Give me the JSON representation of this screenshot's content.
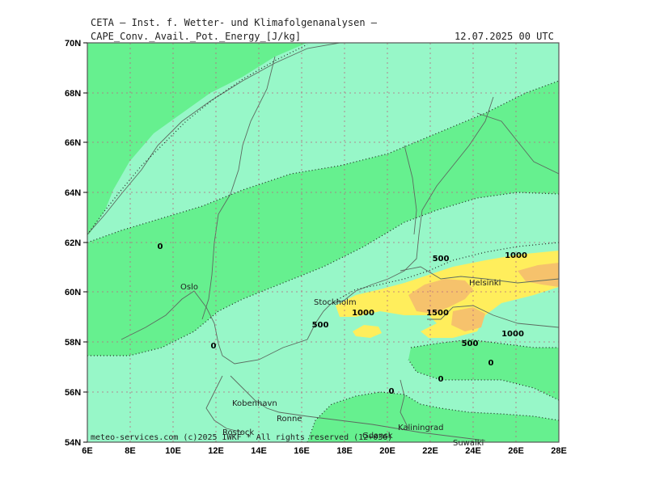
{
  "header": {
    "line1": "CETA – Inst. f. Wetter- und Klimafolgenanalysen –",
    "line2_left": "CAPE_Conv._Avail._Pot._Energy_[J/kg]",
    "line2_right": "12.07.2025 00 UTC"
  },
  "map": {
    "lat_labels": [
      "70N",
      "68N",
      "66N",
      "64N",
      "62N",
      "60N",
      "58N",
      "56N",
      "54N"
    ],
    "lon_labels": [
      "6E",
      "8E",
      "10E",
      "12E",
      "14E",
      "16E",
      "18E",
      "20E",
      "22E",
      "24E",
      "26E",
      "28E"
    ],
    "places": [
      "Oslo",
      "Stockholm",
      "Helsinki",
      "Kobenhavn",
      "Ronne",
      "Rostock",
      "Kaliningrad",
      "Suwalki",
      "Gdansk"
    ],
    "contour_labels": [
      "0",
      "0",
      "0",
      "0",
      "0",
      "500",
      "500",
      "500",
      "1000",
      "1000",
      "1000",
      "1500"
    ],
    "footer": "meteo-services.com (c)2025 IWKF * All rights reserved (12+036)",
    "colors": {
      "cape_0": "#97f7c8",
      "cape_low": "#66f08f",
      "cape_mid": "#ffee5c",
      "cape_high": "#f6c26c",
      "frame": "#555555"
    }
  }
}
